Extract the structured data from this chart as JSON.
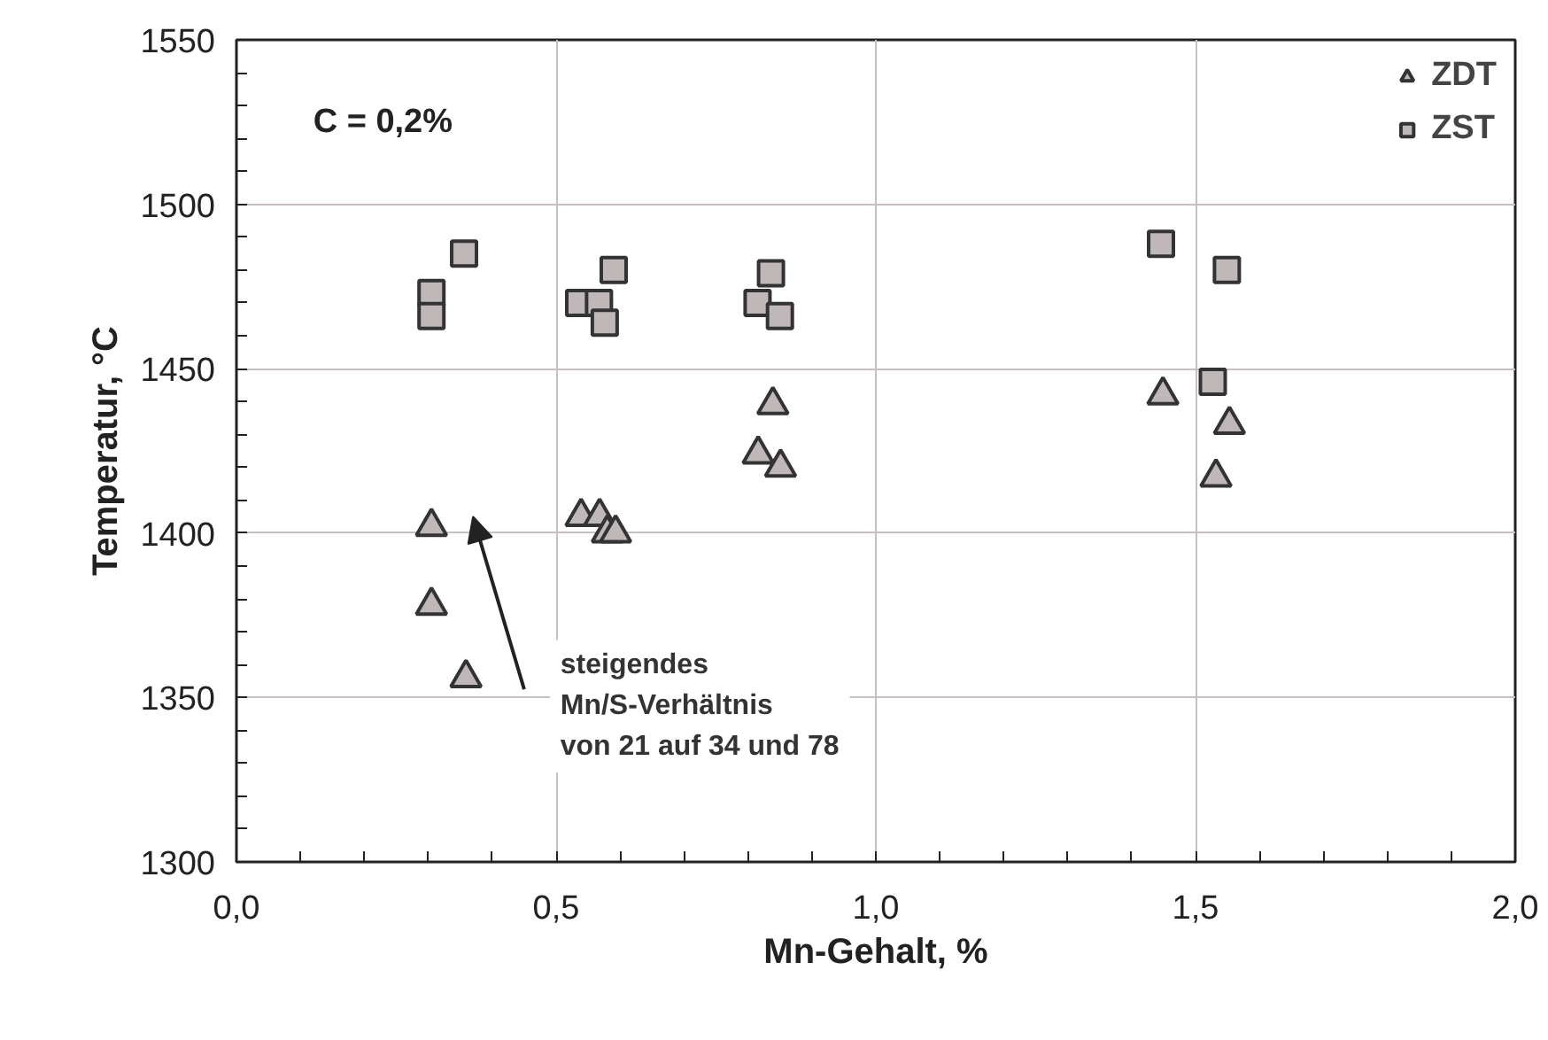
{
  "chart_data": {
    "type": "scatter",
    "xlabel": "Mn-Gehalt, %",
    "ylabel": "Temperatur, °C",
    "xlim": [
      0,
      2
    ],
    "ylim": [
      1300,
      1550
    ],
    "xticks": [
      {
        "value": 0,
        "label": "0,0"
      },
      {
        "value": 0.1,
        "label": null
      },
      {
        "value": 0.2,
        "label": null
      },
      {
        "value": 0.3,
        "label": null
      },
      {
        "value": 0.4,
        "label": null
      },
      {
        "value": 0.5,
        "label": "0,5"
      },
      {
        "value": 0.6,
        "label": null
      },
      {
        "value": 0.7,
        "label": null
      },
      {
        "value": 0.8,
        "label": null
      },
      {
        "value": 0.9,
        "label": null
      },
      {
        "value": 1.0,
        "label": "1,0"
      },
      {
        "value": 1.1,
        "label": null
      },
      {
        "value": 1.2,
        "label": null
      },
      {
        "value": 1.3,
        "label": null
      },
      {
        "value": 1.4,
        "label": null
      },
      {
        "value": 1.5,
        "label": "1,5"
      },
      {
        "value": 1.6,
        "label": null
      },
      {
        "value": 1.7,
        "label": null
      },
      {
        "value": 1.8,
        "label": null
      },
      {
        "value": 1.9,
        "label": null
      },
      {
        "value": 2.0,
        "label": "2,0"
      }
    ],
    "yticks": [
      1300,
      {
        "value": 1310,
        "label": null
      },
      {
        "value": 1320,
        "label": null
      },
      {
        "value": 1330,
        "label": null
      },
      {
        "value": 1340,
        "label": null
      },
      1350,
      {
        "value": 1360,
        "label": null
      },
      {
        "value": 1370,
        "label": null
      },
      {
        "value": 1380,
        "label": null
      },
      {
        "value": 1390,
        "label": null
      },
      1400,
      {
        "value": 1410,
        "label": null
      },
      {
        "value": 1420,
        "label": null
      },
      {
        "value": 1430,
        "label": null
      },
      {
        "value": 1440,
        "label": null
      },
      1450,
      {
        "value": 1460,
        "label": null
      },
      {
        "value": 1470,
        "label": null
      },
      {
        "value": 1480,
        "label": null
      },
      {
        "value": 1490,
        "label": null
      },
      1500,
      {
        "value": 1510,
        "label": null
      },
      {
        "value": 1520,
        "label": null
      },
      {
        "value": 1530,
        "label": null
      },
      {
        "value": 1540,
        "label": null
      },
      1550
    ],
    "grid": true,
    "legend": "top right",
    "series": [
      {
        "name": "ZDT",
        "marker": "triangle",
        "color": "#c0b8b8",
        "x": [
          0.305,
          0.305,
          0.359,
          0.539,
          0.568,
          0.58,
          0.593,
          0.816,
          0.839,
          0.851,
          1.449,
          1.553,
          1.532
        ],
        "values": [
          1402,
          1378,
          1356,
          1405,
          1405,
          1400,
          1400,
          1424,
          1439,
          1420,
          1442,
          1433,
          1417
        ]
      },
      {
        "name": "ZST",
        "marker": "square",
        "color": "#c0b8b8",
        "x": [
          0.305,
          0.305,
          0.356,
          0.536,
          0.567,
          0.576,
          0.59,
          0.815,
          0.836,
          0.85,
          1.446,
          1.549,
          1.527
        ],
        "values": [
          1473,
          1466,
          1485,
          1470,
          1470,
          1464,
          1480,
          1470,
          1479,
          1466,
          1488,
          1480,
          1446
        ]
      }
    ],
    "annotations": [
      "C = 0,2%",
      "steigendes\nMn/S-Verhältnis\nvon 21 auf 34 und 78"
    ]
  }
}
